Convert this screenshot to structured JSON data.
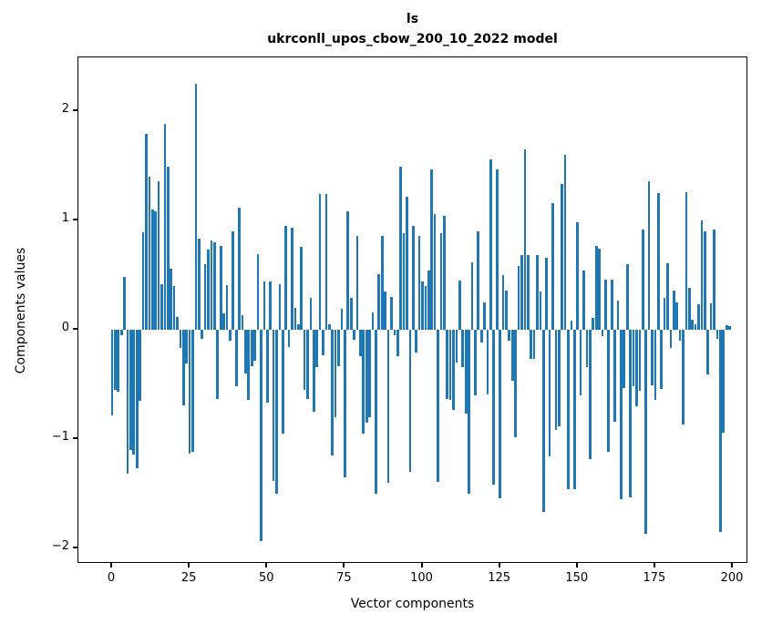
{
  "figure": {
    "title_line1": "ls",
    "title_line2": "ukrconll_upos_cbow_200_10_2022 model"
  },
  "chart_data": {
    "type": "bar",
    "title": "ls\nukrconll_upos_cbow_200_10_2022 model",
    "xlabel": "Vector components",
    "ylabel": "Components values",
    "bar_color": "#1f77b4",
    "background_color": "#ffffff",
    "grid": false,
    "legend": false,
    "x_description": "component index 0..199",
    "xlim": [
      -10.9,
      205
    ],
    "ylim": [
      -2.14,
      2.47
    ],
    "x_ticks": [
      0,
      25,
      50,
      75,
      100,
      125,
      150,
      175,
      200
    ],
    "x_tick_labels": [
      "0",
      "25",
      "50",
      "75",
      "100",
      "125",
      "150",
      "175",
      "200"
    ],
    "y_ticks": [
      2,
      1,
      0,
      -1,
      -2
    ],
    "y_tick_labels": [
      "2",
      "1",
      "0",
      "−1",
      "−2"
    ],
    "values": [
      -0.78,
      -0.55,
      -0.57,
      -0.05,
      0.48,
      -1.32,
      -1.1,
      -1.14,
      -1.27,
      -0.65,
      0.89,
      1.79,
      1.4,
      1.1,
      1.08,
      1.36,
      0.42,
      1.88,
      1.49,
      0.56,
      0.4,
      0.12,
      -0.17,
      -0.69,
      -0.31,
      -1.13,
      -1.12,
      2.25,
      0.83,
      -0.08,
      0.6,
      0.73,
      0.82,
      0.8,
      -0.63,
      0.77,
      0.15,
      0.41,
      -0.1,
      0.9,
      -0.52,
      1.12,
      0.13,
      -0.4,
      -0.64,
      -0.33,
      -0.28,
      0.69,
      -1.93,
      0.44,
      -0.67,
      0.44,
      -1.38,
      -1.5,
      0.42,
      -0.95,
      0.95,
      -0.16,
      0.93,
      0.2,
      0.05,
      0.76,
      -0.55,
      -0.63,
      0.29,
      -0.75,
      -0.34,
      1.24,
      -0.23,
      1.24,
      0.05,
      -1.15,
      -0.8,
      -0.33,
      0.19,
      -1.35,
      1.08,
      0.29,
      -0.09,
      0.86,
      -0.24,
      -0.95,
      -0.85,
      -0.8,
      0.16,
      -1.5,
      0.51,
      0.86,
      0.35,
      -1.4,
      0.3,
      -0.05,
      -0.24,
      1.49,
      0.88,
      1.22,
      -1.3,
      0.95,
      -0.21,
      0.86,
      0.44,
      0.4,
      0.54,
      1.47,
      1.06,
      -1.39,
      0.88,
      1.04,
      -0.63,
      -0.64,
      -0.73,
      -0.3,
      0.45,
      -0.34,
      -0.77,
      -1.5,
      0.62,
      -0.6,
      0.9,
      -0.12,
      0.25,
      -0.59,
      1.56,
      -1.42,
      1.47,
      -1.54,
      0.5,
      0.36,
      -0.1,
      -0.47,
      -0.98,
      0.58,
      0.68,
      1.65,
      0.68,
      -0.27,
      -0.27,
      0.68,
      0.35,
      -1.67,
      0.66,
      -1.16,
      1.16,
      -0.92,
      -0.88,
      1.33,
      1.6,
      -1.46,
      0.08,
      -1.46,
      0.98,
      -0.6,
      0.54,
      -0.34,
      -1.18,
      0.11,
      0.77,
      0.74,
      -0.06,
      0.46,
      -1.12,
      0.46,
      -0.84,
      0.27,
      -1.55,
      -0.53,
      0.6,
      -1.53,
      -0.52,
      -0.7,
      -0.56,
      0.92,
      -1.87,
      1.36,
      -0.51,
      -0.64,
      1.25,
      -0.54,
      0.29,
      0.61,
      -0.17,
      0.36,
      0.25,
      -0.1,
      -0.87,
      1.26,
      0.38,
      0.09,
      0.05,
      0.23,
      1.0,
      0.9,
      -0.41,
      0.24,
      0.92,
      -0.08,
      -1.85,
      -0.94,
      0.04,
      0.03
    ]
  }
}
